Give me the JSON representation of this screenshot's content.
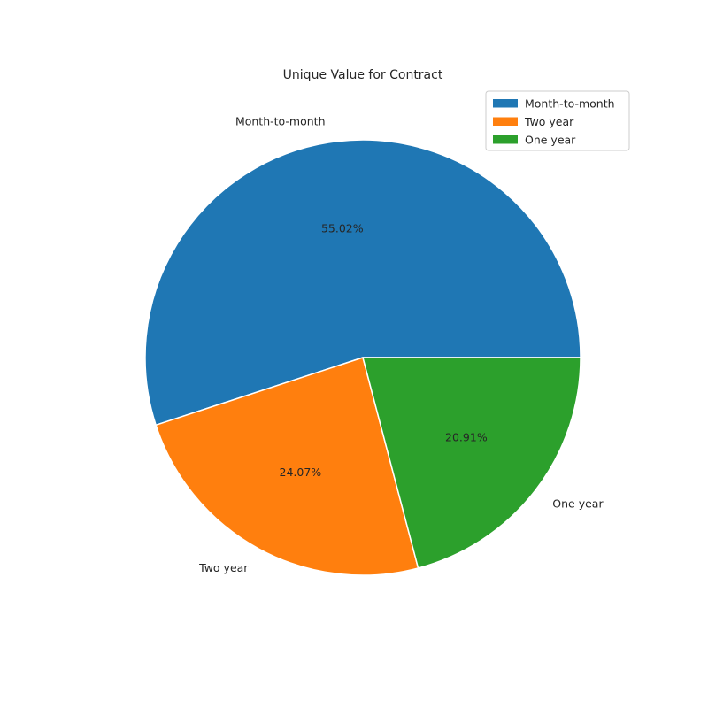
{
  "chart_data": {
    "type": "pie",
    "title": "Unique Value for Contract",
    "categories": [
      "Month-to-month",
      "Two year",
      "One year"
    ],
    "values": [
      55.02,
      24.07,
      20.91
    ],
    "value_labels": [
      "55.02%",
      "24.07%",
      "20.91%"
    ],
    "colors": [
      "#1f77b4",
      "#ff7f0e",
      "#2ca02c"
    ],
    "start_angle_deg": 0,
    "direction": "counterclockwise",
    "legend": {
      "placement": "top-right",
      "entries": [
        "Month-to-month",
        "Two year",
        "One year"
      ]
    }
  }
}
